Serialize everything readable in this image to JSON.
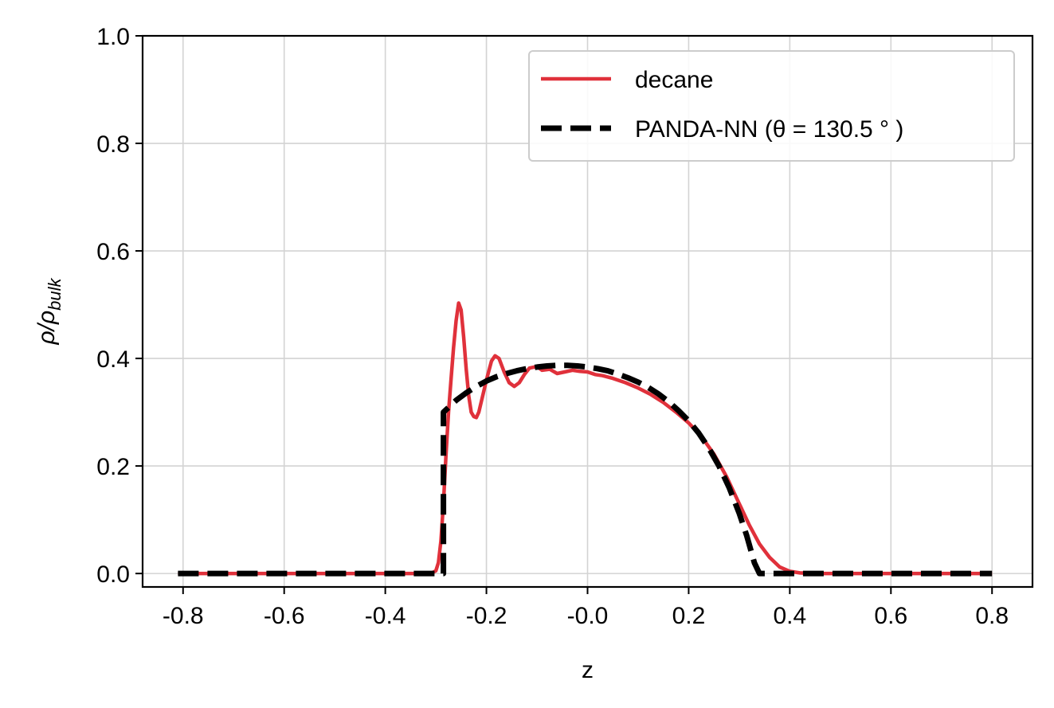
{
  "chart_data": {
    "type": "line",
    "title": "",
    "xlabel": "z",
    "ylabel_main": "ρ/ρ",
    "ylabel_sub": "bulk",
    "xlim": [
      -0.88,
      0.88
    ],
    "ylim": [
      -0.025,
      1.0
    ],
    "xticks": [
      -0.8,
      -0.6,
      -0.4,
      -0.2,
      0.0,
      0.2,
      0.4,
      0.6,
      0.8
    ],
    "xtick_labels": [
      "-0.8",
      "-0.6",
      "-0.4",
      "-0.2",
      "-0.0",
      "0.2",
      "0.4",
      "0.6",
      "0.8"
    ],
    "yticks": [
      0.0,
      0.2,
      0.4,
      0.6,
      0.8,
      1.0
    ],
    "ytick_labels": [
      "0.0",
      "0.2",
      "0.4",
      "0.6",
      "0.8",
      "1.0"
    ],
    "grid": true,
    "legend_position": "top-right",
    "series": [
      {
        "name": "decane",
        "color": "#e0313b",
        "style": "solid",
        "points": [
          [
            -0.81,
            0.0
          ],
          [
            -0.4,
            0.0
          ],
          [
            -0.31,
            0.0
          ],
          [
            -0.3,
            0.005
          ],
          [
            -0.295,
            0.02
          ],
          [
            -0.29,
            0.06
          ],
          [
            -0.285,
            0.13
          ],
          [
            -0.28,
            0.22
          ],
          [
            -0.275,
            0.3
          ],
          [
            -0.27,
            0.36
          ],
          [
            -0.265,
            0.42
          ],
          [
            -0.26,
            0.47
          ],
          [
            -0.255,
            0.503
          ],
          [
            -0.25,
            0.49
          ],
          [
            -0.245,
            0.44
          ],
          [
            -0.24,
            0.38
          ],
          [
            -0.235,
            0.33
          ],
          [
            -0.23,
            0.3
          ],
          [
            -0.225,
            0.292
          ],
          [
            -0.22,
            0.29
          ],
          [
            -0.215,
            0.3
          ],
          [
            -0.21,
            0.32
          ],
          [
            -0.2,
            0.36
          ],
          [
            -0.19,
            0.395
          ],
          [
            -0.183,
            0.405
          ],
          [
            -0.175,
            0.4
          ],
          [
            -0.165,
            0.375
          ],
          [
            -0.155,
            0.355
          ],
          [
            -0.145,
            0.348
          ],
          [
            -0.135,
            0.355
          ],
          [
            -0.125,
            0.37
          ],
          [
            -0.115,
            0.382
          ],
          [
            -0.1,
            0.385
          ],
          [
            -0.09,
            0.378
          ],
          [
            -0.075,
            0.38
          ],
          [
            -0.06,
            0.372
          ],
          [
            -0.045,
            0.375
          ],
          [
            -0.03,
            0.378
          ],
          [
            -0.015,
            0.376
          ],
          [
            0.0,
            0.375
          ],
          [
            0.015,
            0.37
          ],
          [
            0.03,
            0.368
          ],
          [
            0.05,
            0.363
          ],
          [
            0.075,
            0.355
          ],
          [
            0.1,
            0.345
          ],
          [
            0.125,
            0.333
          ],
          [
            0.15,
            0.318
          ],
          [
            0.175,
            0.3
          ],
          [
            0.2,
            0.28
          ],
          [
            0.225,
            0.255
          ],
          [
            0.25,
            0.222
          ],
          [
            0.275,
            0.18
          ],
          [
            0.3,
            0.13
          ],
          [
            0.32,
            0.09
          ],
          [
            0.34,
            0.055
          ],
          [
            0.36,
            0.03
          ],
          [
            0.38,
            0.012
          ],
          [
            0.4,
            0.004
          ],
          [
            0.42,
            0.001
          ],
          [
            0.45,
            0.0
          ],
          [
            0.8,
            0.0
          ]
        ]
      },
      {
        "name": "PANDA-NN (θ = 130.5 ° )",
        "color": "#000000",
        "style": "dashed",
        "points": [
          [
            -0.81,
            0.0
          ],
          [
            -0.285,
            0.0
          ],
          [
            -0.285,
            0.3
          ],
          [
            -0.26,
            0.322
          ],
          [
            -0.24,
            0.336
          ],
          [
            -0.22,
            0.348
          ],
          [
            -0.2,
            0.358
          ],
          [
            -0.18,
            0.366
          ],
          [
            -0.16,
            0.372
          ],
          [
            -0.14,
            0.377
          ],
          [
            -0.12,
            0.381
          ],
          [
            -0.1,
            0.384
          ],
          [
            -0.08,
            0.386
          ],
          [
            -0.06,
            0.387
          ],
          [
            -0.04,
            0.387
          ],
          [
            -0.02,
            0.386
          ],
          [
            0.0,
            0.384
          ],
          [
            0.02,
            0.381
          ],
          [
            0.04,
            0.377
          ],
          [
            0.06,
            0.371
          ],
          [
            0.08,
            0.364
          ],
          [
            0.1,
            0.356
          ],
          [
            0.12,
            0.346
          ],
          [
            0.14,
            0.334
          ],
          [
            0.16,
            0.32
          ],
          [
            0.18,
            0.303
          ],
          [
            0.2,
            0.284
          ],
          [
            0.22,
            0.261
          ],
          [
            0.24,
            0.233
          ],
          [
            0.26,
            0.2
          ],
          [
            0.28,
            0.16
          ],
          [
            0.3,
            0.112
          ],
          [
            0.315,
            0.07
          ],
          [
            0.33,
            0.02
          ],
          [
            0.34,
            0.0
          ],
          [
            0.8,
            0.0
          ]
        ]
      }
    ]
  }
}
